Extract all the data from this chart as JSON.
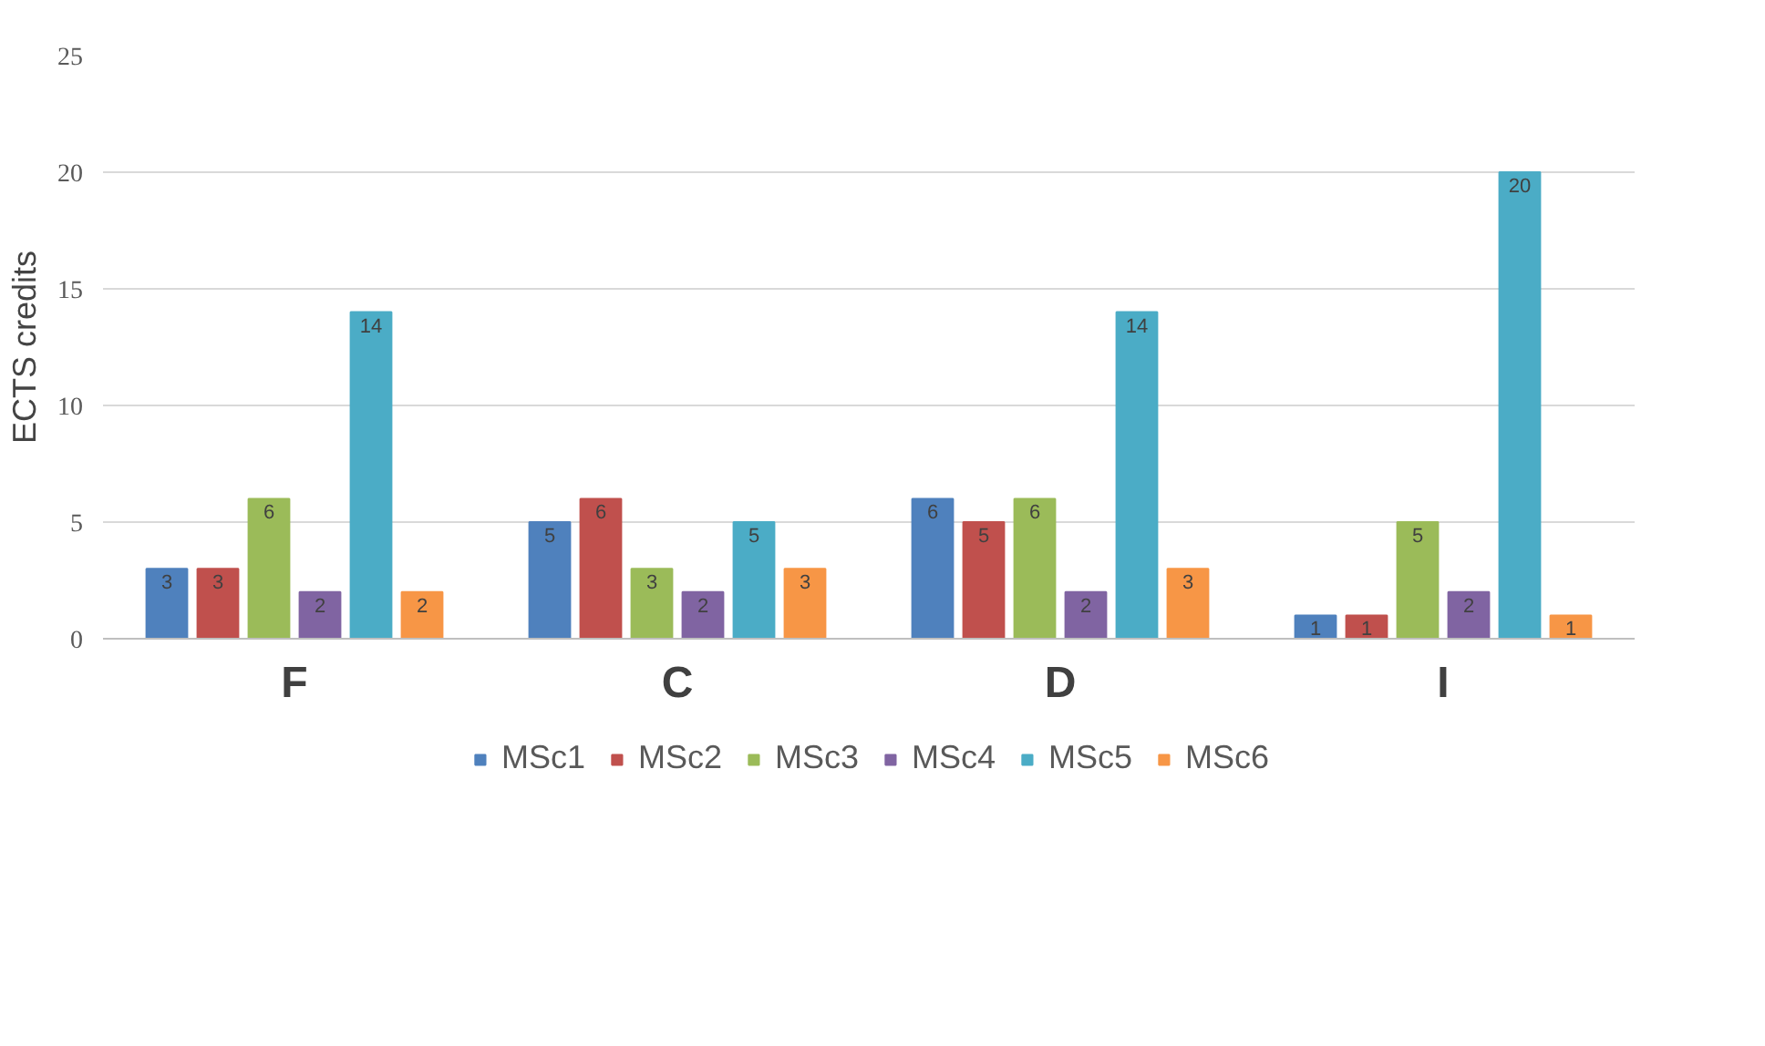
{
  "chart_data": {
    "type": "bar",
    "ylabel": "ECTS credits",
    "categories": [
      "F",
      "C",
      "D",
      "I"
    ],
    "series": [
      {
        "name": "MSc1",
        "color": "#4f81bd",
        "values": [
          3,
          5,
          6,
          1
        ]
      },
      {
        "name": "MSc2",
        "color": "#c0504d",
        "values": [
          3,
          6,
          5,
          1
        ]
      },
      {
        "name": "MSc3",
        "color": "#9bbb59",
        "values": [
          6,
          3,
          6,
          5
        ]
      },
      {
        "name": "MSc4",
        "color": "#8064a2",
        "values": [
          2,
          2,
          2,
          2
        ]
      },
      {
        "name": "MSc5",
        "color": "#4bacc6",
        "values": [
          14,
          5,
          14,
          20
        ]
      },
      {
        "name": "MSc6",
        "color": "#f79646",
        "values": [
          2,
          3,
          3,
          1
        ]
      }
    ],
    "ylim": [
      0,
      25
    ],
    "yticks": [
      0,
      5,
      10,
      15,
      20,
      25
    ],
    "grid": "y",
    "legend": "bottom",
    "data_labels": true
  }
}
